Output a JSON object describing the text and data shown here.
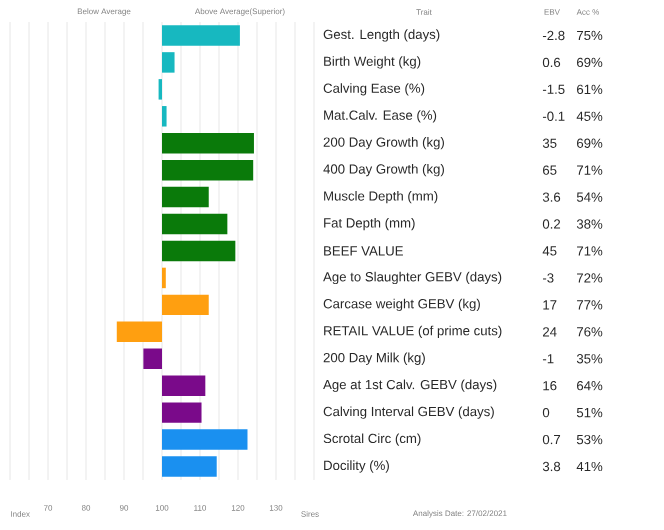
{
  "chart_data": {
    "type": "bar",
    "orientation": "horizontal",
    "categories": [
      "Gest. Length (days)",
      "Birth Weight (kg)",
      "Calving Ease (%)",
      "Mat.Calv. Ease (%)",
      "200 Day Growth (kg)",
      "400 Day Growth (kg)",
      "Muscle Depth (mm)",
      "Fat Depth (mm)",
      "BEEF VALUE",
      "Age to Slaughter GEBV (days)",
      "Carcase weight GEBV (kg)",
      "RETAIL VALUE (of prime cuts)",
      "200 Day Milk (kg)",
      "Age at 1st Calv. GEBV (days)",
      "Calving Interval GEBV (days)",
      "Scrotal Circ (cm)",
      "Docility (%)"
    ],
    "base": [
      100,
      100,
      100,
      100,
      100,
      100,
      100,
      100,
      100,
      100,
      100,
      100,
      100,
      100,
      100,
      100,
      100
    ],
    "values": [
      20.5,
      3.3,
      -0.9,
      1.2,
      24.2,
      24,
      12.3,
      17.2,
      19.3,
      1,
      12.3,
      -11.9,
      -4.9,
      11.4,
      10.4,
      22.5,
      14.4
    ],
    "colors": [
      "#17b8c0",
      "#17b8c0",
      "#17b8c0",
      "#17b8c0",
      "#0a7a0a",
      "#0a7a0a",
      "#0a7a0a",
      "#0a7a0a",
      "#0a7a0a",
      "#ff9f10",
      "#ff9f10",
      "#ff9f10",
      "#7a0a8a",
      "#7a0a8a",
      "#7a0a8a",
      "#1a90f0",
      "#1a90f0"
    ],
    "xlim": [
      60,
      140
    ],
    "xticks": [
      {
        "value": 60,
        "label": null
      },
      {
        "value": 65,
        "label": null
      },
      70,
      {
        "value": 75,
        "label": null
      },
      80,
      {
        "value": 85,
        "label": null
      },
      90,
      {
        "value": 95,
        "label": null
      },
      100,
      {
        "value": 105,
        "label": null
      },
      110,
      {
        "value": 115,
        "label": null
      },
      120,
      {
        "value": 125,
        "label": null
      },
      130,
      {
        "value": 135,
        "label": null
      },
      {
        "value": 140,
        "label": null
      }
    ],
    "grid": "x",
    "annotations": [
      "Below Average",
      "Above Average(Superior)",
      "Trait",
      "EBV",
      "Acc %",
      "Index",
      "Sires",
      "Analysis Date: 27/02/2021",
      "-2.8",
      "75%",
      "0.6",
      "69%",
      "-1.5",
      "61%",
      "-0.1",
      "45%",
      "35",
      "69%",
      "65",
      "71%",
      "3.6",
      "54%",
      "0.2",
      "38%",
      "45",
      "71%",
      "-3",
      "72%",
      "17",
      "77%",
      "24",
      "76%",
      "-1",
      "35%",
      "16",
      "64%",
      "0",
      "51%",
      "0.7",
      "53%",
      "3.8",
      "41%"
    ]
  }
}
